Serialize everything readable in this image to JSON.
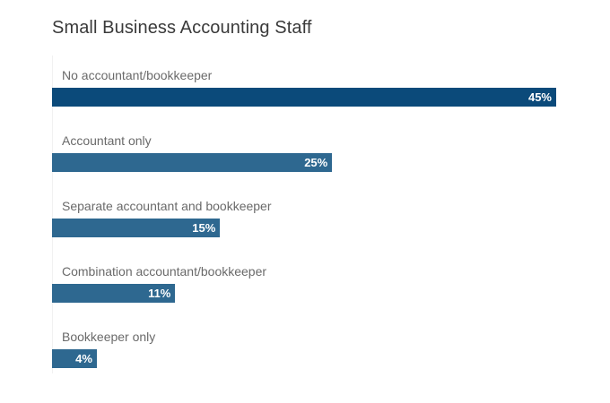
{
  "title": "Small Business Accounting Staff",
  "colors": {
    "bar_primary": "#0b4a7a",
    "bar_secondary": "#2e6890"
  },
  "chart_data": {
    "type": "bar",
    "orientation": "horizontal",
    "title": "Small Business Accounting Staff",
    "categories": [
      "No accountant/bookkeeper",
      "Accountant only",
      "Separate accountant and bookkeeper",
      "Combination accountant/bookkeeper",
      "Bookkeeper only"
    ],
    "values": [
      45,
      25,
      15,
      11,
      4
    ],
    "value_labels": [
      "45%",
      "25%",
      "15%",
      "11%",
      "4%"
    ],
    "unit": "%",
    "xlim": [
      0,
      45
    ],
    "grid": false,
    "legend": "none"
  }
}
